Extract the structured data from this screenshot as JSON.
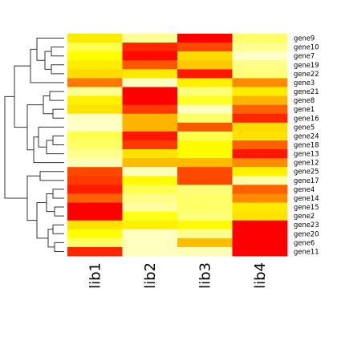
{
  "chart_data": {
    "type": "heatmap",
    "title": "",
    "xlabel": "",
    "ylabel": "",
    "columns": [
      "lib1",
      "lib2",
      "lib3",
      "lib4"
    ],
    "rows": [
      "gene9",
      "gene10",
      "gene7",
      "gene19",
      "gene22",
      "gene3",
      "gene21",
      "gene8",
      "gene1",
      "gene16",
      "gene5",
      "gene24",
      "gene18",
      "gene13",
      "gene12",
      "gene25",
      "gene17",
      "gene4",
      "gene14",
      "gene15",
      "gene2",
      "gene23",
      "gene20",
      "gene6",
      "gene11"
    ],
    "values": [
      [
        0.6,
        0.94,
        0.0,
        0.88
      ],
      [
        0.85,
        0.08,
        0.15,
        0.93
      ],
      [
        0.75,
        0.02,
        0.5,
        1.0
      ],
      [
        0.62,
        0.18,
        0.45,
        0.92
      ],
      [
        0.5,
        0.6,
        0.05,
        0.9
      ],
      [
        0.25,
        0.99,
        0.65,
        0.3
      ],
      [
        0.93,
        0.0,
        0.9,
        0.62
      ],
      [
        0.65,
        0.0,
        0.8,
        0.4
      ],
      [
        0.55,
        0.12,
        0.99,
        0.2
      ],
      [
        0.99,
        0.4,
        0.88,
        0.08
      ],
      [
        1.0,
        0.4,
        0.18,
        0.5
      ],
      [
        0.85,
        0.05,
        0.85,
        0.55
      ],
      [
        0.88,
        0.12,
        0.72,
        0.2
      ],
      [
        0.93,
        0.55,
        0.72,
        0.05
      ],
      [
        0.98,
        0.42,
        0.42,
        0.3
      ],
      [
        0.15,
        0.98,
        0.15,
        0.65
      ],
      [
        0.12,
        0.72,
        0.15,
        0.96
      ],
      [
        0.06,
        0.85,
        0.9,
        0.2
      ],
      [
        0.2,
        0.92,
        0.88,
        0.3
      ],
      [
        0.0,
        0.95,
        0.88,
        0.6
      ],
      [
        0.0,
        0.78,
        0.9,
        0.55
      ],
      [
        0.55,
        0.65,
        0.72,
        0.0
      ],
      [
        0.75,
        0.99,
        0.93,
        0.0
      ],
      [
        0.88,
        0.99,
        0.42,
        0.0
      ],
      [
        0.08,
        0.99,
        0.98,
        0.0
      ]
    ],
    "colormap": [
      "#ff0000",
      "#ff7800",
      "#ffdc00",
      "#ffff00",
      "#ffffc8"
    ],
    "dendrogram": "row"
  }
}
